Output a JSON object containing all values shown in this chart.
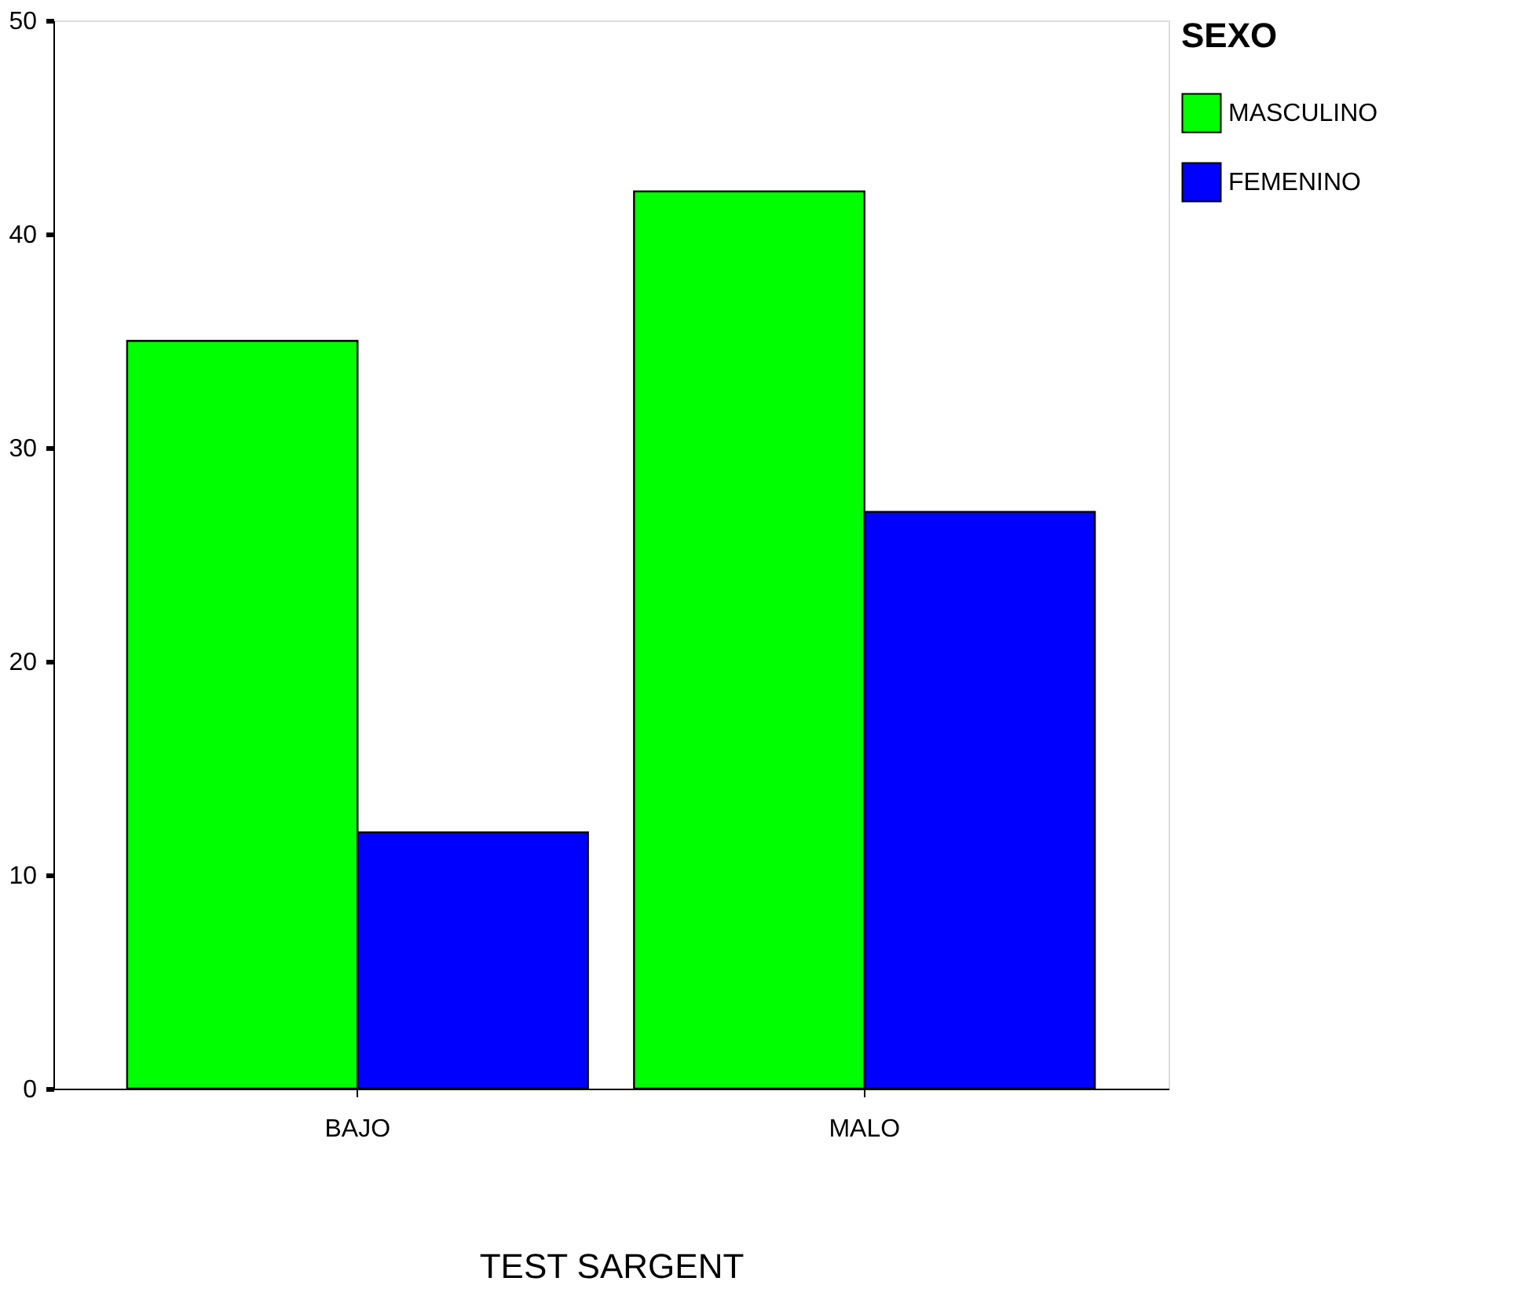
{
  "chart_data": {
    "type": "bar",
    "xlabel": "TEST SARGENT",
    "legend_title": "SEXO",
    "categories": [
      "BAJO",
      "MALO"
    ],
    "series": [
      {
        "name": "MASCULINO",
        "color": "#00ff00",
        "values": [
          35,
          42
        ]
      },
      {
        "name": "FEMENINO",
        "color": "#0000ff",
        "values": [
          12,
          27
        ]
      }
    ],
    "ylim": [
      0,
      50
    ],
    "yticks": [
      0,
      10,
      20,
      30,
      40,
      50
    ],
    "grid": false,
    "legend": "right"
  }
}
